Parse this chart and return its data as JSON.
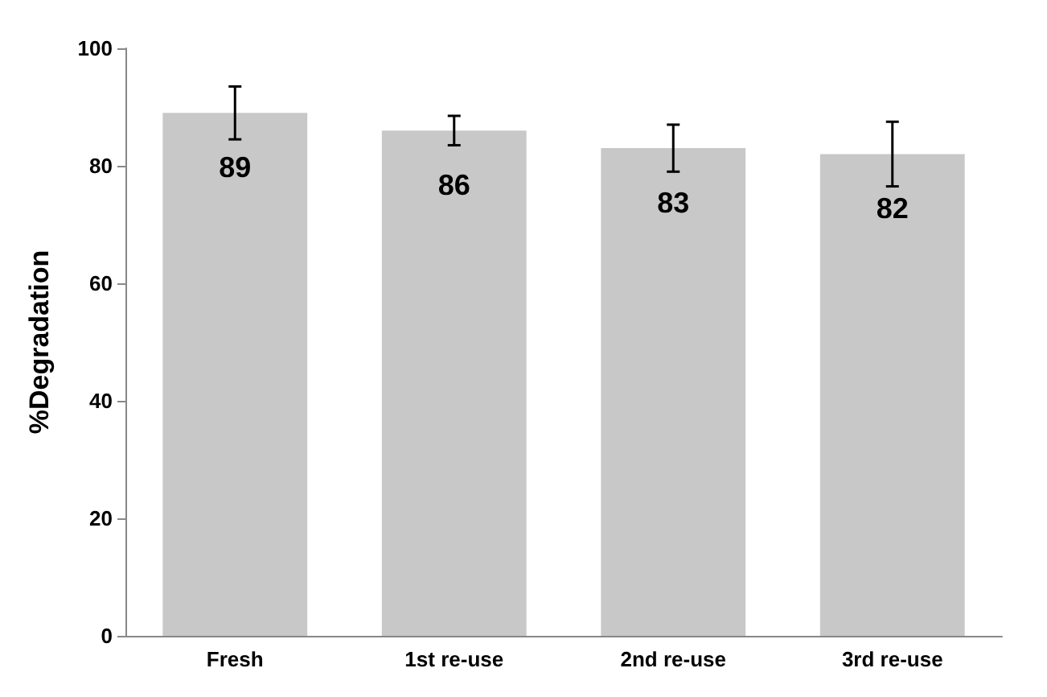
{
  "chart_data": {
    "type": "bar",
    "ylabel": "%Degradation",
    "categories": [
      "Fresh",
      "1st re-use",
      "2nd re-use",
      "3rd re-use"
    ],
    "values": [
      89,
      86,
      83,
      82
    ],
    "errors": [
      4.5,
      2.5,
      4,
      5.5
    ],
    "color": "#c8c8c8",
    "ylim": [
      0,
      100
    ],
    "yticks": [
      0,
      20,
      40,
      60,
      80,
      100
    ],
    "grid": false,
    "data_labels": true
  }
}
